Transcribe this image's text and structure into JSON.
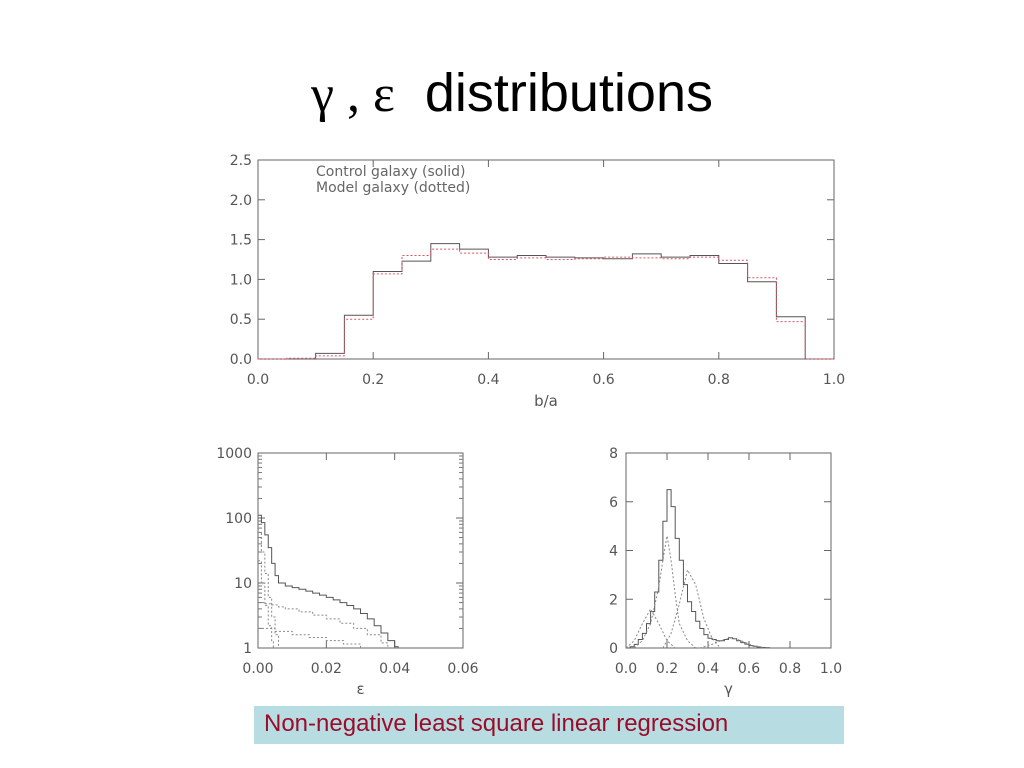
{
  "slide": {
    "title_greek": "γ , ε",
    "title_text": "distributions",
    "caption": "Non-negative least square linear regression",
    "caption_bg": "#b7dde3",
    "caption_color": "#9a0d2a"
  },
  "chart_data": [
    {
      "type": "step-histogram",
      "title": "",
      "xlabel": "b/a",
      "ylabel": "",
      "xlim": [
        0,
        1
      ],
      "ylim": [
        0,
        2.5
      ],
      "xticks": [
        "0.0",
        "0.2",
        "0.4",
        "0.6",
        "0.8",
        "1.0"
      ],
      "yticks": [
        "0.0",
        "0.5",
        "1.0",
        "1.5",
        "2.0",
        "2.5"
      ],
      "annotations": [
        "Control galaxy (solid)",
        "Model galaxy (dotted)"
      ],
      "bin_edges": [
        0,
        0.05,
        0.1,
        0.15,
        0.2,
        0.25,
        0.3,
        0.35,
        0.4,
        0.45,
        0.5,
        0.55,
        0.6,
        0.65,
        0.7,
        0.75,
        0.8,
        0.85,
        0.9,
        0.95,
        1.0
      ],
      "series": [
        {
          "name": "Control galaxy (solid)",
          "style": "solid",
          "color": "#555555",
          "values": [
            0.0,
            0.0,
            0.07,
            0.55,
            1.1,
            1.23,
            1.45,
            1.38,
            1.28,
            1.3,
            1.28,
            1.27,
            1.26,
            1.32,
            1.28,
            1.3,
            1.2,
            0.97,
            0.53,
            0.0
          ]
        },
        {
          "name": "Model galaxy (dotted)",
          "style": "dotted",
          "color": "#e05060",
          "values": [
            0.0,
            0.01,
            0.04,
            0.5,
            1.07,
            1.3,
            1.38,
            1.33,
            1.25,
            1.27,
            1.25,
            1.26,
            1.28,
            1.27,
            1.26,
            1.28,
            1.24,
            1.02,
            0.47,
            0.0
          ]
        }
      ]
    },
    {
      "type": "step-histogram",
      "xlabel": "ε",
      "ylabel": "",
      "xlim": [
        0,
        0.06
      ],
      "ylim": [
        1,
        1000
      ],
      "yscale": "log",
      "xticks": [
        "0.00",
        "0.02",
        "0.04",
        "0.06"
      ],
      "yticks": [
        "1",
        "10",
        "100",
        "1000"
      ],
      "series": [
        {
          "style": "solid",
          "color": "#555555",
          "x": [
            0,
            0.001,
            0.002,
            0.003,
            0.004,
            0.005,
            0.006,
            0.008,
            0.01,
            0.012,
            0.014,
            0.016,
            0.018,
            0.02,
            0.022,
            0.024,
            0.026,
            0.028,
            0.03,
            0.032,
            0.034,
            0.036,
            0.038,
            0.04,
            0.041
          ],
          "y": [
            110,
            85,
            55,
            35,
            20,
            13,
            10,
            9,
            8.5,
            8,
            7.5,
            7,
            6.5,
            6,
            5.5,
            5,
            4.5,
            4,
            3.4,
            2.8,
            2.2,
            1.7,
            1.3,
            1.05,
            1
          ]
        },
        {
          "style": "dotted",
          "color": "#888888",
          "x": [
            0,
            0.002,
            0.004,
            0.006,
            0.008,
            0.012,
            0.016,
            0.02,
            0.024,
            0.028,
            0.032,
            0.036,
            0.038
          ],
          "y": [
            5,
            4.8,
            4.6,
            4.3,
            4.0,
            3.6,
            3.2,
            2.8,
            2.4,
            2.0,
            1.6,
            1.2,
            1
          ]
        },
        {
          "style": "dotted",
          "color": "#888888",
          "x": [
            0,
            0.001,
            0.002,
            0.003,
            0.004,
            0.005,
            0.006
          ],
          "y": [
            60,
            30,
            14,
            6,
            3,
            1.6,
            1
          ]
        },
        {
          "style": "dotted",
          "color": "#888888",
          "x": [
            0,
            0.001,
            0.002,
            0.003,
            0.004,
            0.0045
          ],
          "y": [
            22,
            10,
            4.5,
            2.2,
            1.3,
            1
          ]
        },
        {
          "style": "dotted",
          "color": "#888888",
          "x": [
            0,
            0.005,
            0.01,
            0.015,
            0.02,
            0.025,
            0.03
          ],
          "y": [
            2.0,
            1.8,
            1.6,
            1.45,
            1.3,
            1.15,
            1
          ]
        }
      ]
    },
    {
      "type": "step-histogram",
      "xlabel": "γ",
      "ylabel": "",
      "xlim": [
        0,
        1
      ],
      "ylim": [
        0,
        8
      ],
      "xticks": [
        "0.0",
        "0.2",
        "0.4",
        "0.6",
        "0.8",
        "1.0"
      ],
      "yticks": [
        "0",
        "2",
        "4",
        "6",
        "8"
      ],
      "series": [
        {
          "style": "solid",
          "color": "#555555",
          "x": [
            0.0,
            0.02,
            0.04,
            0.06,
            0.08,
            0.1,
            0.12,
            0.14,
            0.16,
            0.18,
            0.2,
            0.22,
            0.24,
            0.26,
            0.28,
            0.3,
            0.32,
            0.34,
            0.36,
            0.38,
            0.4,
            0.42,
            0.44,
            0.46,
            0.48,
            0.5,
            0.52,
            0.54,
            0.56,
            0.58,
            0.6,
            0.62,
            0.64,
            0.66,
            0.68,
            0.7
          ],
          "y": [
            0.0,
            0.05,
            0.15,
            0.35,
            0.6,
            1.0,
            1.5,
            2.3,
            3.6,
            5.2,
            6.5,
            5.8,
            4.5,
            3.6,
            2.6,
            1.9,
            1.5,
            1.1,
            0.8,
            0.55,
            0.4,
            0.35,
            0.3,
            0.3,
            0.35,
            0.42,
            0.38,
            0.3,
            0.22,
            0.16,
            0.1,
            0.07,
            0.04,
            0.02,
            0.01,
            0.0
          ]
        },
        {
          "style": "dotted",
          "color": "#888888",
          "x": [
            0.04,
            0.08,
            0.12,
            0.16,
            0.18,
            0.2,
            0.22,
            0.24,
            0.26,
            0.3,
            0.34
          ],
          "y": [
            0,
            0.3,
            1.0,
            2.5,
            3.6,
            4.6,
            3.6,
            2.2,
            1.0,
            0.3,
            0
          ]
        },
        {
          "style": "dotted",
          "color": "#888888",
          "x": [
            0.0,
            0.04,
            0.08,
            0.12,
            0.16,
            0.2,
            0.24
          ],
          "y": [
            0,
            0.3,
            1.0,
            1.6,
            1.0,
            0.3,
            0
          ]
        },
        {
          "style": "dotted",
          "color": "#888888",
          "x": [
            0.18,
            0.22,
            0.26,
            0.3,
            0.34,
            0.38,
            0.42,
            0.46
          ],
          "y": [
            0,
            0.6,
            1.8,
            3.2,
            2.6,
            1.2,
            0.4,
            0
          ]
        },
        {
          "style": "dotted",
          "color": "#888888",
          "x": [
            0.36,
            0.42,
            0.48,
            0.52,
            0.56,
            0.62,
            0.68
          ],
          "y": [
            0,
            0.15,
            0.35,
            0.42,
            0.3,
            0.1,
            0
          ]
        }
      ]
    }
  ]
}
